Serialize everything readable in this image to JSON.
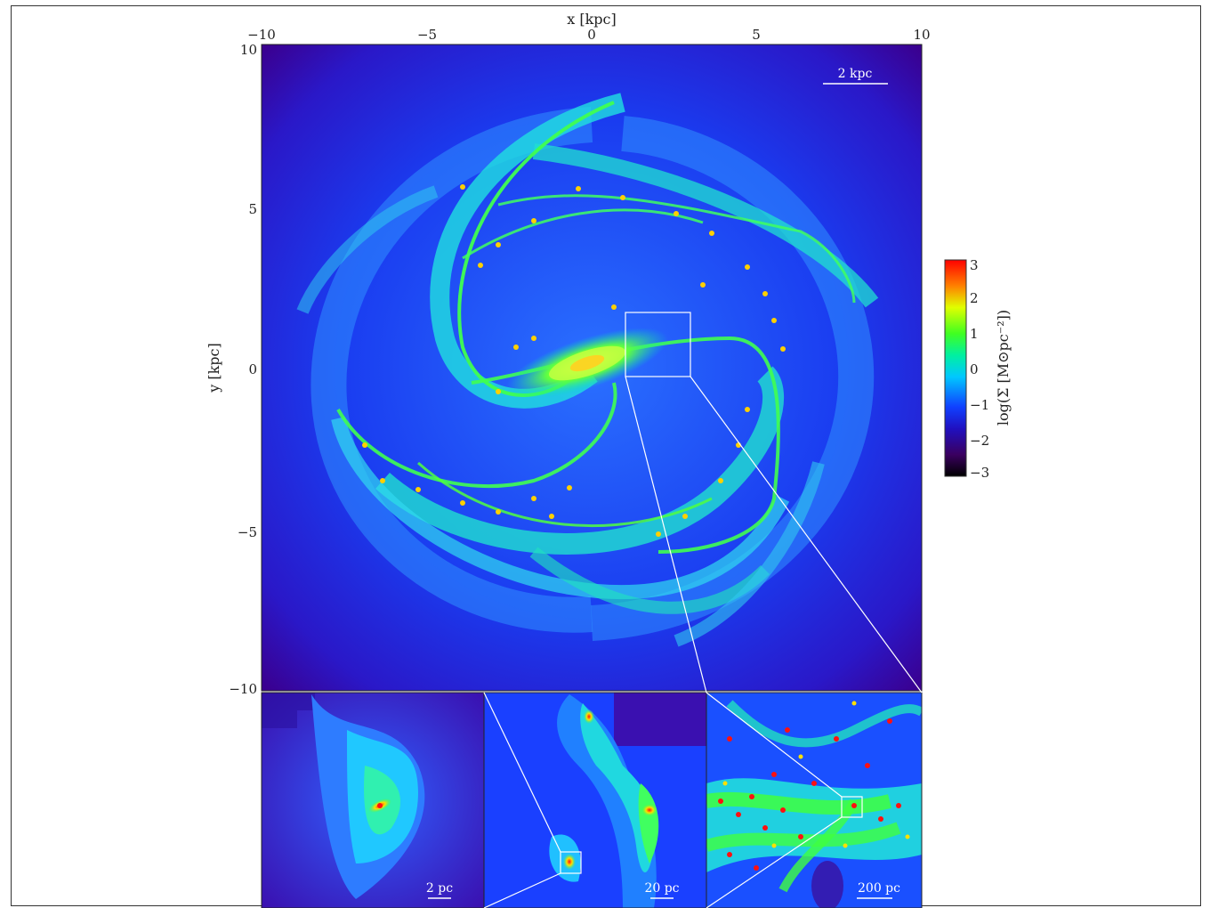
{
  "main_panel": {
    "xlabel": "x [kpc]",
    "ylabel": "y [kpc]",
    "xlim": [
      -10,
      10
    ],
    "ylim": [
      -10,
      10
    ],
    "x_ticks": [
      "−10",
      "−5",
      "0",
      "5",
      "10"
    ],
    "y_ticks": [
      "10",
      "5",
      "0",
      "−5",
      "−10"
    ],
    "scale_bar": "2 kpc"
  },
  "colorbar": {
    "label": "log(Σ [M⊙pc⁻²])",
    "ticks": [
      "3",
      "2",
      "1",
      "0",
      "−1",
      "−2",
      "−3"
    ],
    "range": [
      -3,
      3
    ],
    "colormap": "rainbow"
  },
  "zoom_panels": [
    {
      "scale_bar": "2 pc"
    },
    {
      "scale_bar": "20 pc"
    },
    {
      "scale_bar": "200 pc"
    }
  ],
  "colors": {
    "low": "#3a0060",
    "mid_low": "#1a20ff",
    "mid": "#00e0e0",
    "mid_high": "#40ff40",
    "high": "#ff1010"
  }
}
